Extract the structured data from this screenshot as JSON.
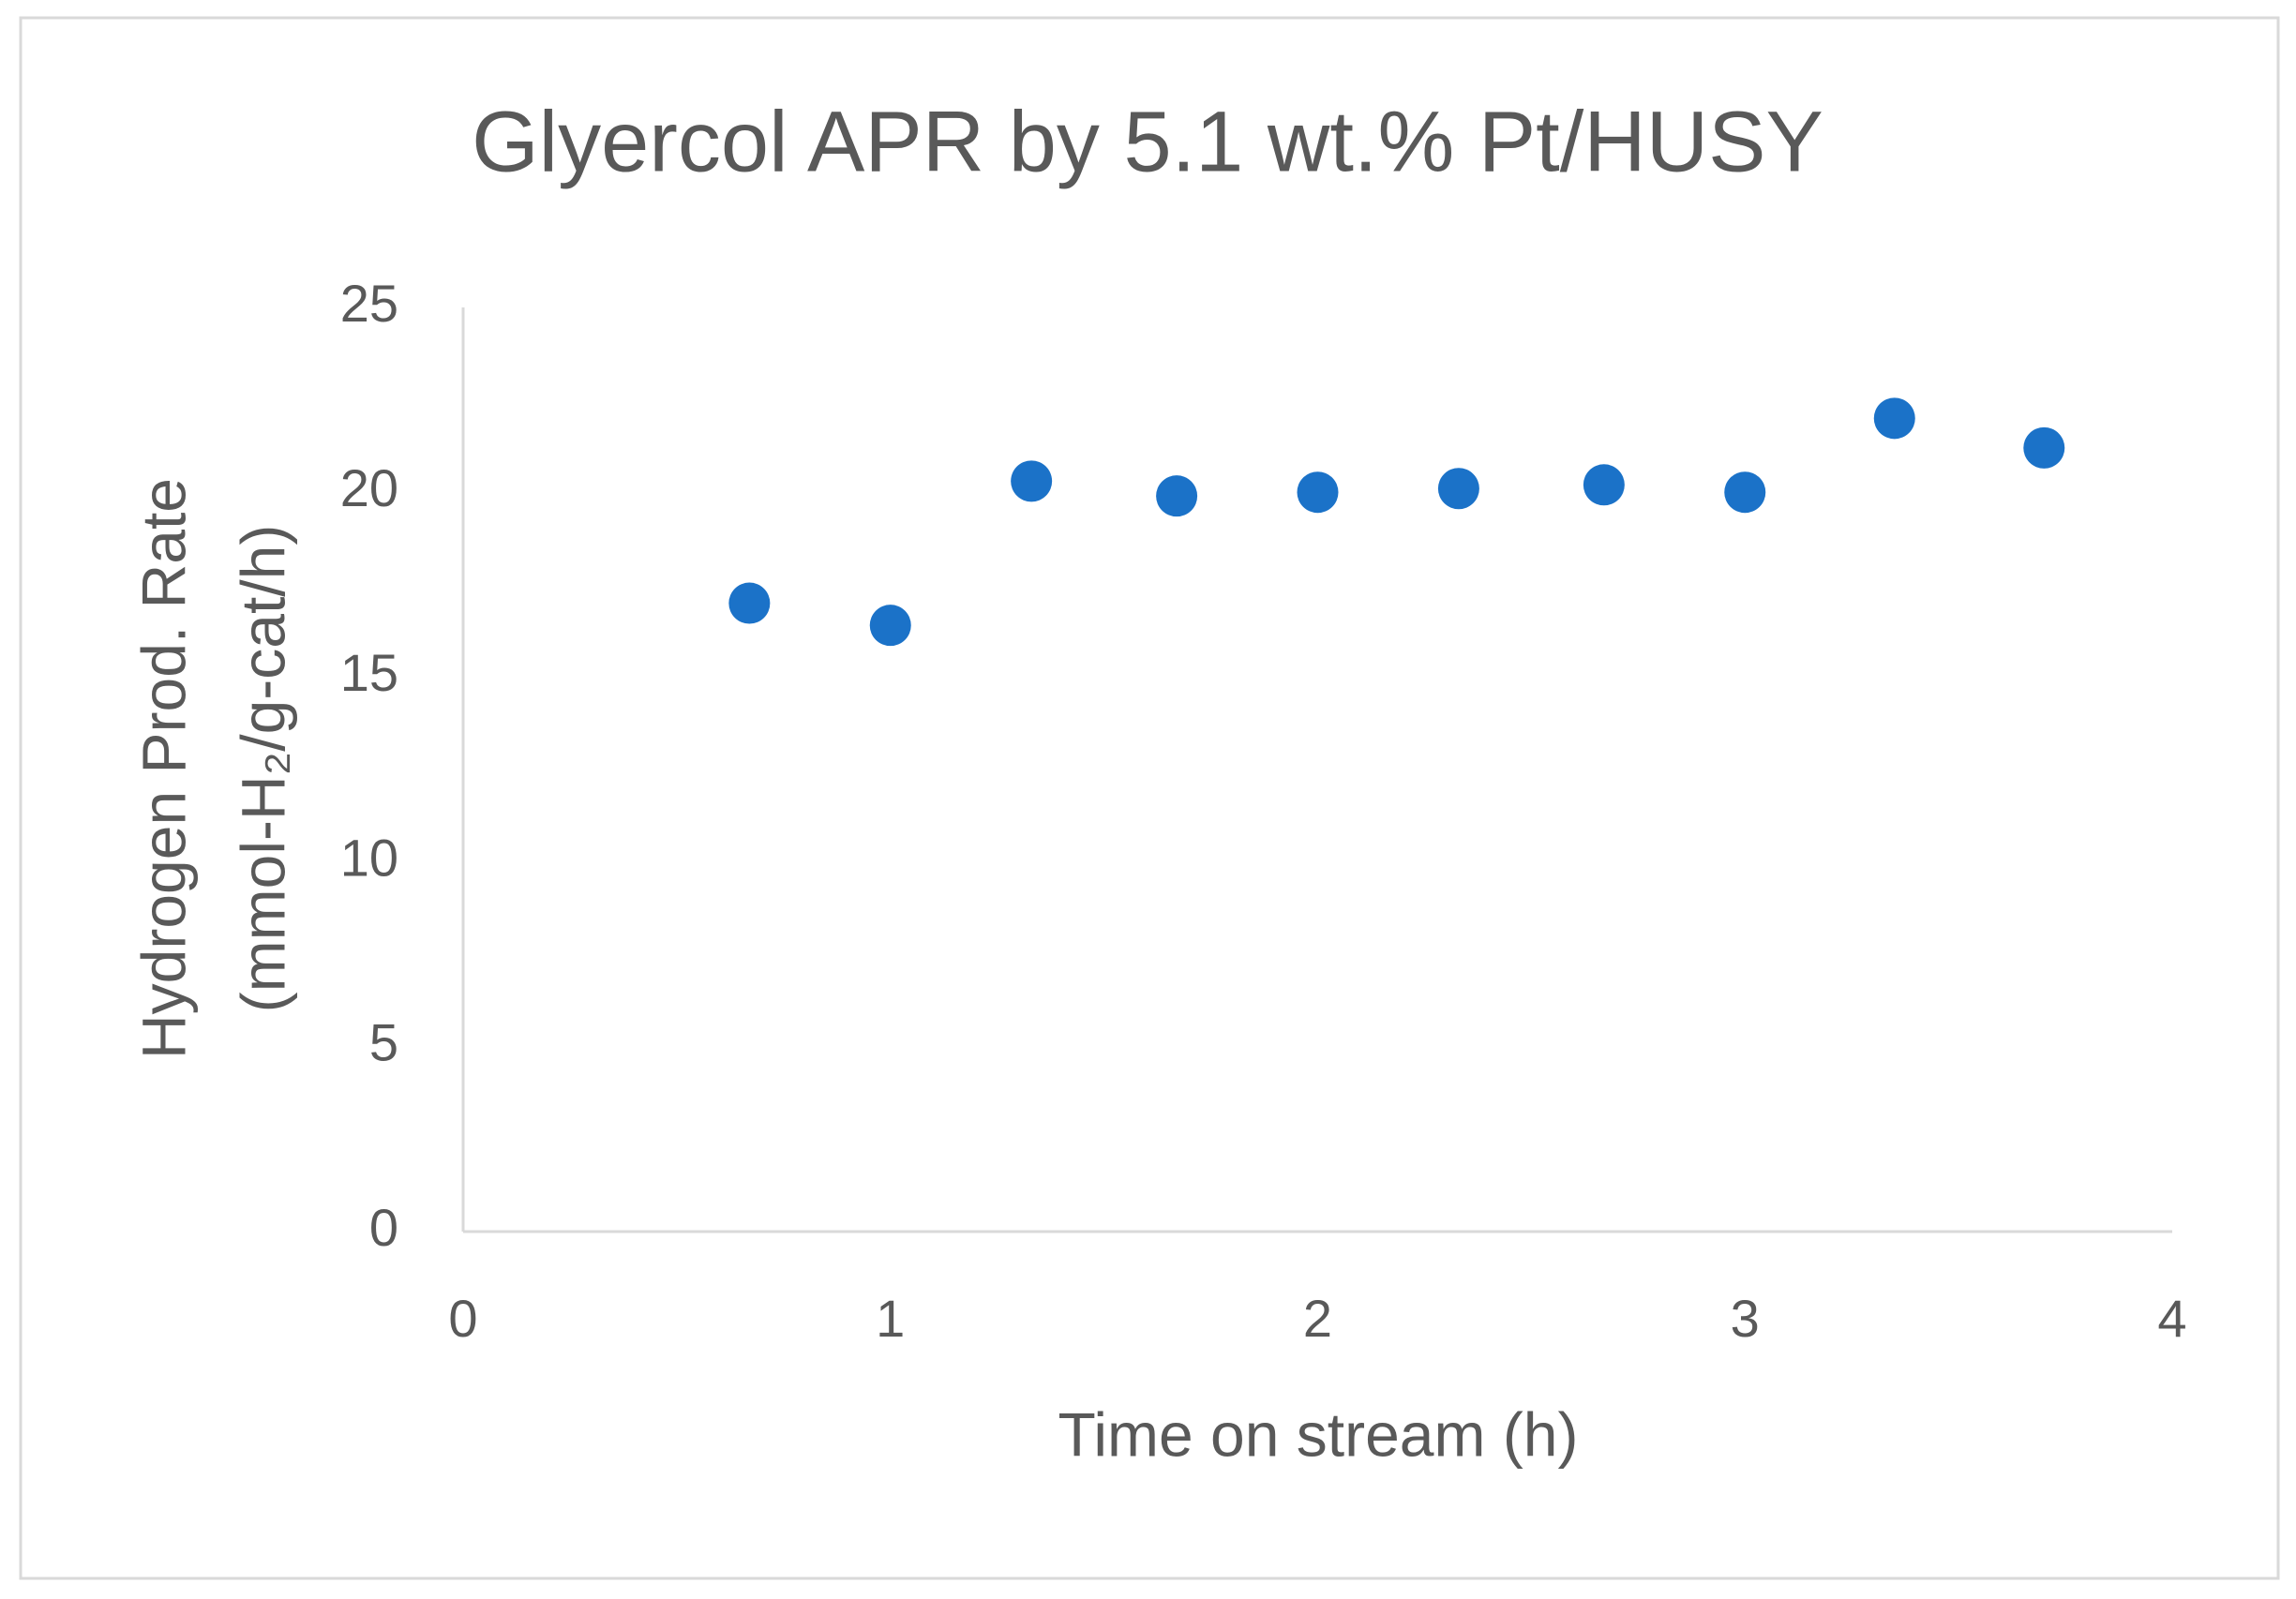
{
  "chart_data": {
    "type": "scatter",
    "title": "Glyercol APR by 5.1 wt.% Pt/HUSY",
    "x_label": "Time on stream (h)",
    "y_label": [
      "Hydrogen Prod. Rate",
      "(mmol-H₂/g-cat/h)"
    ],
    "x": [
      0.67,
      1.0,
      1.33,
      1.67,
      2.0,
      2.33,
      2.67,
      3.0,
      3.35,
      3.7
    ],
    "values": [
      17.0,
      16.4,
      20.3,
      19.9,
      20.0,
      20.1,
      20.2,
      20.0,
      22.0,
      21.2
    ],
    "color": "#1b72c8",
    "xlim": [
      0,
      4
    ],
    "xticks": [
      0,
      1,
      2,
      3,
      4
    ],
    "ylim": [
      0,
      25
    ],
    "yticks": [
      0,
      5,
      10,
      15,
      20,
      25
    ],
    "grid": false
  }
}
